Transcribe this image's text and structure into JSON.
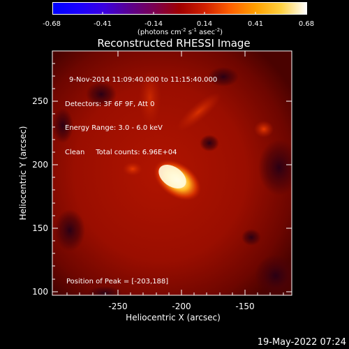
{
  "colorbar": {
    "tick_labels": [
      "-0.68",
      "-0.41",
      "-0.14",
      "0.14",
      "0.41",
      "0.68"
    ],
    "units_label": "(photons cm",
    "units_exp1": "-2",
    "units_mid": " s",
    "units_exp2": "-1",
    "units_mid2": " asec",
    "units_exp3": "-2",
    "units_end": ")",
    "colors": [
      "#0000ff",
      "#1a00ff",
      "#3a00e0",
      "#5a0090",
      "#7a0050",
      "#a00000",
      "#d02000",
      "#ff6000",
      "#ffa000",
      "#ffd040",
      "#ffffff"
    ]
  },
  "image": {
    "title": "Reconstructed RHESSI Image",
    "info_lines": [
      "9-Nov-2014 11:09:40.000 to 11:15:40.000",
      "Detectors: 3F 6F 9F, Att 0",
      "Energy Range: 3.0 - 6.0 keV",
      "Clean     Total counts: 6.96E+04"
    ],
    "peak_text": "Position of Peak = [-203,188]",
    "x_axis_label": "Heliocentric X (arcsec)",
    "y_axis_label": "Heliocentric Y (arcsec)",
    "x_ticks": [
      "-250",
      "-200",
      "-150"
    ],
    "y_ticks": [
      "250",
      "200",
      "150",
      "100"
    ],
    "footer_timestamp": "19-May-2022 07:24"
  },
  "chart_data": {
    "type": "heatmap",
    "title": "Reconstructed RHESSI Image",
    "xlabel": "Heliocentric X (arcsec)",
    "ylabel": "Heliocentric Y (arcsec)",
    "xlim": [
      -298,
      -108
    ],
    "ylim": [
      97,
      287
    ],
    "zlim": [
      -0.68,
      0.68
    ],
    "peak": {
      "x": -203,
      "y": 188
    },
    "colormap": "hot (blue-to-white diverging)"
  }
}
